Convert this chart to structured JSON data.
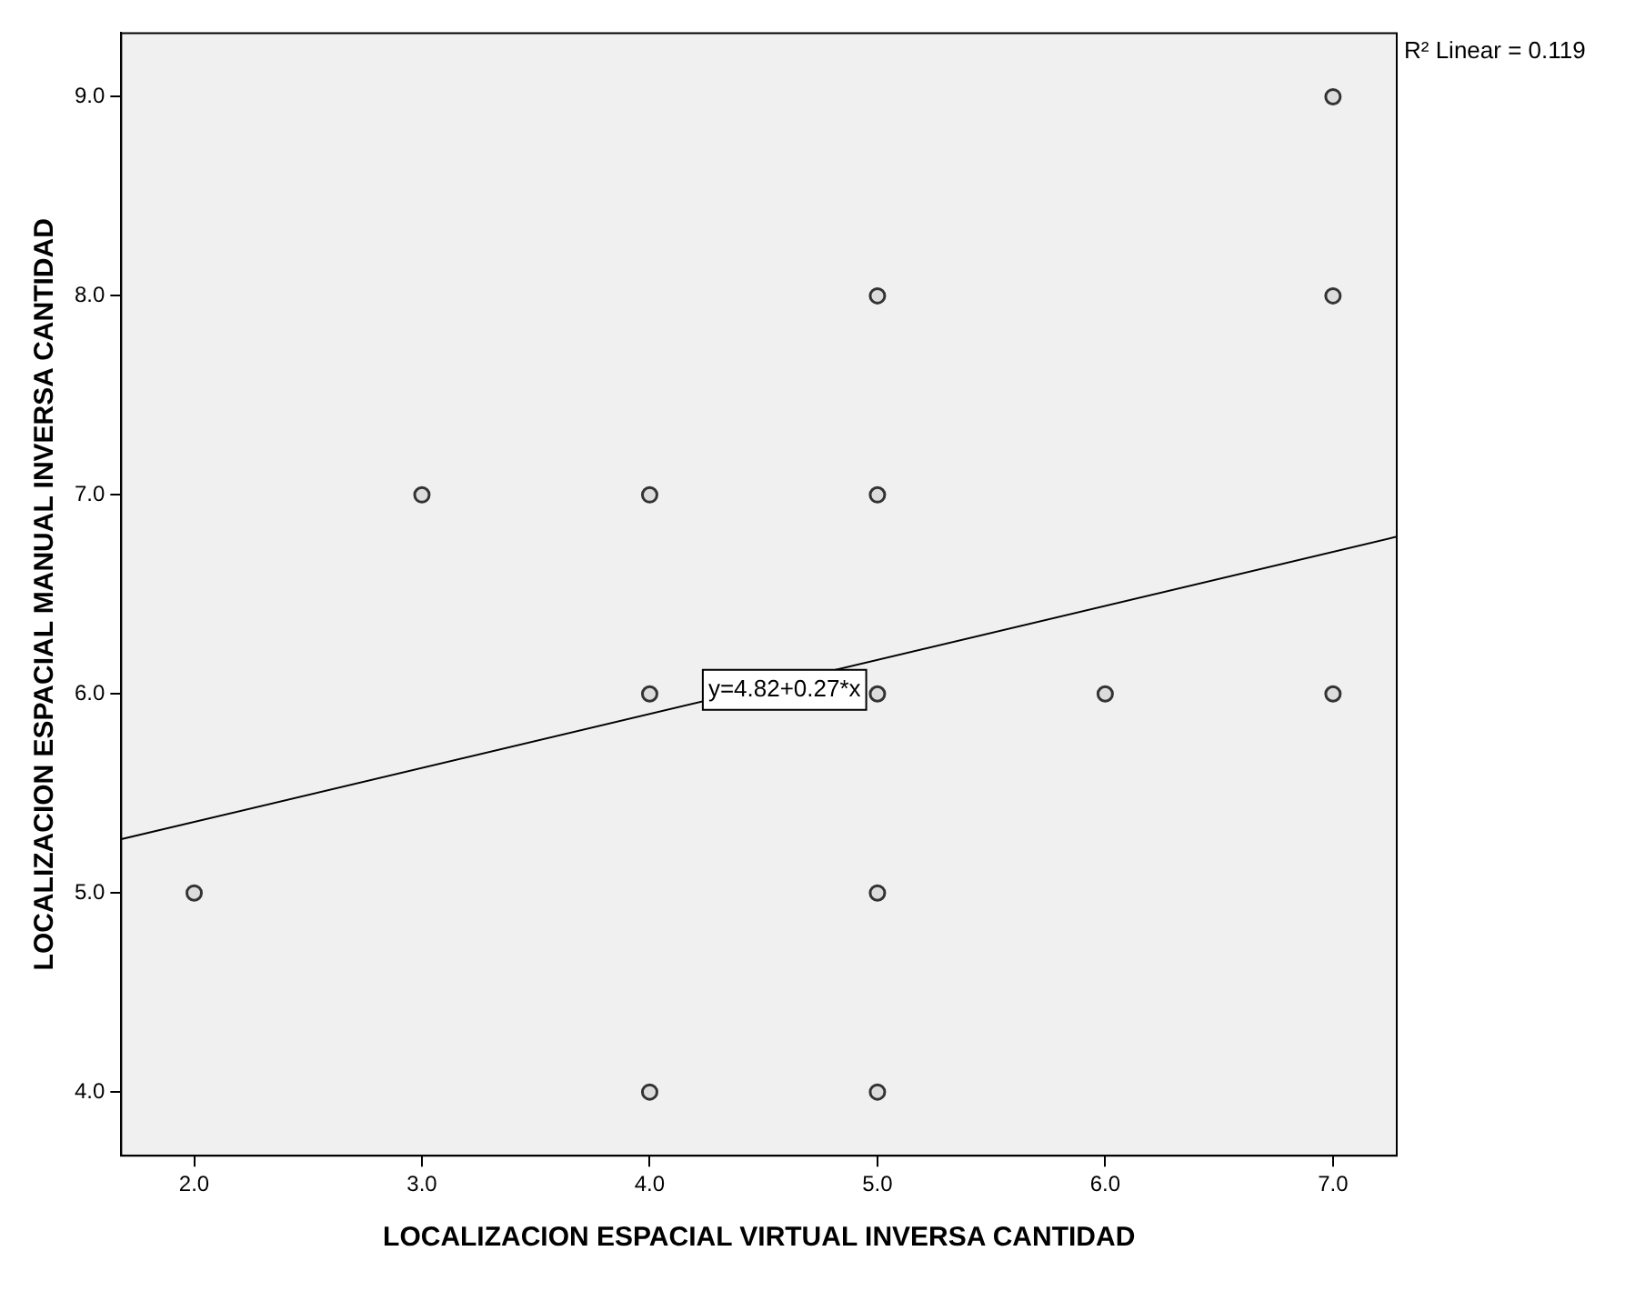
{
  "chart_data": {
    "type": "scatter",
    "xlabel": "LOCALIZACION ESPACIAL VIRTUAL INVERSA CANTIDAD",
    "ylabel": "LOCALIZACION ESPACIAL MANUAL INVERSA CANTIDAD",
    "xlim": [
      1.68,
      7.28
    ],
    "ylim": [
      3.68,
      9.32
    ],
    "xticks": [
      {
        "value": 2,
        "label": "2.0"
      },
      {
        "value": 3,
        "label": "3.0"
      },
      {
        "value": 4,
        "label": "4.0"
      },
      {
        "value": 5,
        "label": "5.0"
      },
      {
        "value": 6,
        "label": "6.0"
      },
      {
        "value": 7,
        "label": "7.0"
      }
    ],
    "yticks": [
      {
        "value": 4,
        "label": "4.0"
      },
      {
        "value": 5,
        "label": "5.0"
      },
      {
        "value": 6,
        "label": "6.0"
      },
      {
        "value": 7,
        "label": "7.0"
      },
      {
        "value": 8,
        "label": "8.0"
      },
      {
        "value": 9,
        "label": "9.0"
      }
    ],
    "grid": false,
    "legend": false,
    "marker": "circle",
    "series": [
      {
        "color": "#333333",
        "x": [
          2,
          3,
          4,
          4,
          4,
          5,
          5,
          5,
          5,
          5,
          6,
          7,
          7,
          7
        ],
        "values": [
          5,
          7,
          7,
          6,
          4,
          8,
          7,
          6,
          5,
          4,
          6,
          9,
          8,
          6
        ]
      },
      {
        "type": "line",
        "color": "#000000",
        "line_style": "solid",
        "marker": "none",
        "x": [
          1.68,
          7.28
        ],
        "values": [
          5.27,
          6.79
        ]
      }
    ],
    "annotations": [
      "R² Linear = 0.119",
      "y=4.82+0.27*x"
    ]
  }
}
